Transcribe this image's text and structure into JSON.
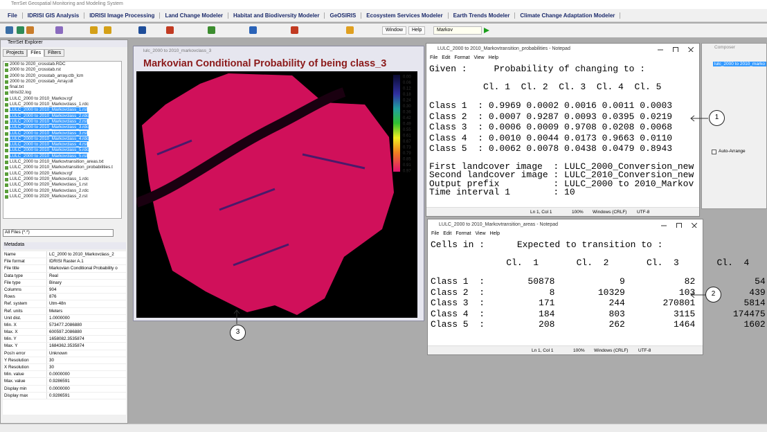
{
  "app": {
    "title": "TerrSet Geospatial Monitoring and Modeling System",
    "menu": [
      "File",
      "IDRISI GIS Analysis",
      "IDRISI Image Processing",
      "Land Change Modeler",
      "Habitat and Biodiversity Modeler",
      "GeOSIRIS",
      "Ecosystem Services Modeler",
      "Earth Trends Modeler",
      "Climate Change Adaptation Modeler"
    ],
    "toolbar": {
      "window": "Window",
      "help": "Help",
      "model": "Markov"
    }
  },
  "explorer": {
    "title": "TerrSet Explorer",
    "tabs": [
      "Projects",
      "Files",
      "Filters"
    ],
    "files": [
      {
        "name": "2000 to 2020_crosstab.RDC",
        "selected": false
      },
      {
        "name": "2000 to 2020_crosstab.rst",
        "selected": false
      },
      {
        "name": "2000 to 2020_crosstab_array.ctb_lcm",
        "selected": false
      },
      {
        "name": "2000 to 2020_crosstab_Array.idl",
        "selected": false
      },
      {
        "name": "final.txt",
        "selected": false
      },
      {
        "name": "Idrisi32.log",
        "selected": false
      },
      {
        "name": "LULC_2000 to 2010_Markov.rgf",
        "selected": false
      },
      {
        "name": "LULC_2000 to 2010_Markovclass_1.rdc",
        "selected": false
      },
      {
        "name": "LULC_2000 to 2010_Markovclass_1.rst",
        "selected": true
      },
      {
        "name": "LULC_2000 to 2010_Markovclass_2.rdc",
        "selected": true
      },
      {
        "name": "LULC_2000 to 2010_Markovclass_2.rst",
        "selected": true
      },
      {
        "name": "LULC_2000 to 2010_Markovclass_3.rdc",
        "selected": true
      },
      {
        "name": "LULC_2000 to 2010_Markovclass_3.rst",
        "selected": true
      },
      {
        "name": "LULC_2000 to 2010_Markovclass_4.rdc",
        "selected": true
      },
      {
        "name": "LULC_2000 to 2010_Markovclass_4.rst",
        "selected": true
      },
      {
        "name": "LULC_2000 to 2010_Markovclass_5.rdc",
        "selected": true
      },
      {
        "name": "LULC_2000 to 2010_Markovclass_5.rst",
        "selected": true
      },
      {
        "name": "LULC_2000 to 2010_Markovtransition_areas.txt",
        "selected": false
      },
      {
        "name": "LULC_2000 to 2010_Markovtransition_probabilities.t",
        "selected": false
      },
      {
        "name": "LULC_2000 to 2020_Markov.rgf",
        "selected": false
      },
      {
        "name": "LULC_2000 to 2020_Markovclass_1.rdc",
        "selected": false
      },
      {
        "name": "LULC_2000 to 2020_Markovclass_1.rst",
        "selected": false
      },
      {
        "name": "LULC_2000 to 2020_Markovclass_2.rdc",
        "selected": false
      },
      {
        "name": "LULC_2000 to 2020_Markovclass_2.rst",
        "selected": false
      }
    ],
    "filter": "All Files (*.*)",
    "metadata_title": "Metadata",
    "metadata": [
      [
        "Name",
        "LC_2000 to 2010_Markovclass_2"
      ],
      [
        "File format",
        "IDRISI Raster A.1"
      ],
      [
        "File title",
        "Markovian Conditional Probability o"
      ],
      [
        "Data type",
        "Real"
      ],
      [
        "File type",
        "Binary"
      ],
      [
        "Columns",
        "904"
      ],
      [
        "Rows",
        "876"
      ],
      [
        "Ref. system",
        "Utm-48n"
      ],
      [
        "Ref. units",
        "Meters"
      ],
      [
        "Unit dist.",
        "1.0000000"
      ],
      [
        "Min. X",
        "573477.2086880"
      ],
      [
        "Max. X",
        "600597.2086880"
      ],
      [
        "Min. Y",
        "1658082.3535874"
      ],
      [
        "Max. Y",
        "1684362.3535874"
      ],
      [
        "Pos'n error",
        "Unknown"
      ],
      [
        "Y Resolution",
        "30"
      ],
      [
        "X Resolution",
        "30"
      ],
      [
        "Min. value",
        "0.0000000"
      ],
      [
        "Max. value",
        "0.9286591"
      ],
      [
        "Display min",
        "0.0000000"
      ],
      [
        "Display max",
        "0.9286591"
      ]
    ]
  },
  "map_window": {
    "title": "lulc_2000 to 2010_markovclass_3",
    "heading": "Markovian Conditional Probability of being class_3",
    "legend": [
      "0.00",
      "0.06",
      "0.12",
      "0.18",
      "0.24",
      "0.30",
      "0.36",
      "0.42",
      "0.49",
      "0.55",
      "0.61",
      "0.67",
      "0.73",
      "0.79",
      "0.85",
      "0.91",
      "0.97"
    ]
  },
  "notepad_probabilities": {
    "title": "LULC_2000 to 2010_Markovtransition_probabilities - Notepad",
    "menu": [
      "File",
      "Edit",
      "Format",
      "View",
      "Help"
    ],
    "header": "Given :     Probability of changing to :",
    "columns": "          Cl. 1  Cl. 2  Cl. 3  Cl. 4  Cl. 5",
    "rows": [
      "Class 1  : 0.9969 0.0002 0.0016 0.0011 0.0003",
      "Class 2  : 0.0007 0.9287 0.0093 0.0395 0.0219",
      "Class 3  : 0.0006 0.0009 0.9708 0.0208 0.0068",
      "Class 4  : 0.0010 0.0044 0.0173 0.9663 0.0110",
      "Class 5  : 0.0062 0.0078 0.0438 0.0479 0.8943"
    ],
    "footer": [
      "First landcover image  : LULC_2000_Conversion_new",
      "Second landcover image : LULC_2010_Conversion_new",
      "Output prefix          : LULC_2000 to 2010_Markov",
      "Time interval 1        : 10"
    ],
    "status": [
      "Ln 1, Col 1",
      "100%",
      "Windows (CRLF)",
      "UTF-8"
    ]
  },
  "notepad_areas": {
    "title": "LULC_2000 to 2010_Markovtransition_areas - Notepad",
    "menu": [
      "File",
      "Edit",
      "Format",
      "View",
      "Help"
    ],
    "header": "Cells in :      Expected to transition to :",
    "columns": "              Cl.  1       Cl.  2       Cl.  3       Cl.  4",
    "rows": [
      "Class 1  :        50878            9           82           54",
      "Class 2  :            8        10329          103          439",
      "Class 3  :          171          244       270801         5814",
      "Class 4  :          184          803         3115       174475",
      "Class 5  :          208          262         1464         1602"
    ],
    "status": [
      "Ln 1, Col 1",
      "100%",
      "Windows (CRLF)",
      "UTF-8"
    ]
  },
  "composer": {
    "title": "Composer",
    "layer": "lulc_2000 to 2010_marko",
    "auto_arrange": "Auto-Arrange"
  },
  "callouts": [
    "1",
    "2",
    "3"
  ]
}
